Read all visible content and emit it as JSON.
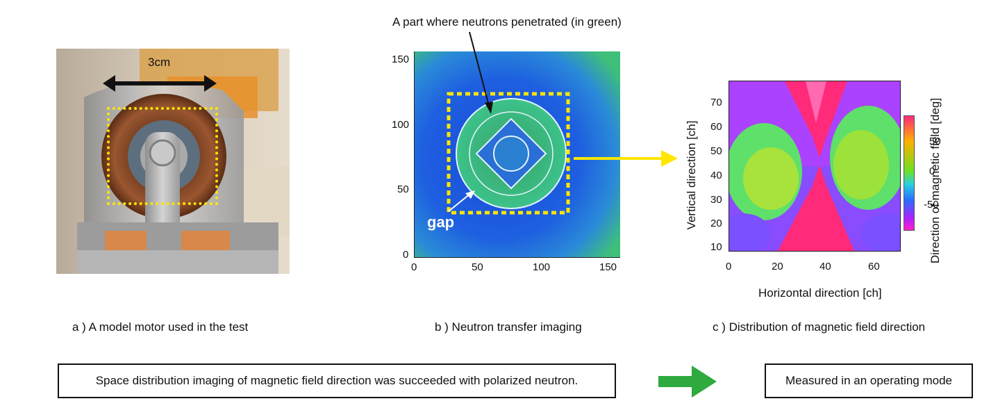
{
  "panel_a": {
    "dimension_label": "3cm",
    "caption": "a ) A model motor used in the test"
  },
  "panel_b": {
    "annotation": "A part where neutrons penetrated (in green)",
    "gap_label": "gap",
    "x_ticks": [
      "0",
      "50",
      "100",
      "150"
    ],
    "y_ticks": [
      "0",
      "50",
      "100",
      "150"
    ],
    "caption": "b ) Neutron transfer imaging"
  },
  "panel_c": {
    "xlabel": "Horizontal direction [ch]",
    "ylabel": "Vertical direction [ch]",
    "colorbar_label": "Direction of magnetic field [deg]",
    "x_ticks": [
      "0",
      "20",
      "40",
      "60"
    ],
    "y_ticks": [
      "10",
      "20",
      "30",
      "40",
      "50",
      "60",
      "70"
    ],
    "colorbar_ticks": [
      "50",
      "0",
      "-50"
    ],
    "caption": "c ) Distribution of magnetic field direction"
  },
  "summary_text": "Space distribution imaging of magnetic field direction was succeeded with polarized neutron.",
  "mode_text": "Measured in an operating mode",
  "colors": {
    "highlight_yellow": "#ffe600",
    "arrow_green": "#2eaa3f"
  },
  "chart_data": [
    {
      "type": "heatmap",
      "x_ticks": [
        0,
        50,
        100,
        150
      ],
      "y_ticks": [
        0,
        50,
        100,
        150
      ],
      "xlim": [
        0,
        155
      ],
      "ylim": [
        0,
        155
      ]
    },
    {
      "type": "heatmap",
      "xlabel": "Horizontal direction [ch]",
      "ylabel": "Vertical direction [ch]",
      "x_ticks": [
        0,
        20,
        40,
        60
      ],
      "y_ticks": [
        10,
        20,
        30,
        40,
        50,
        60,
        70
      ],
      "xlim": [
        0,
        70
      ],
      "ylim": [
        9,
        79
      ],
      "colorbar": {
        "label": "Direction of magnetic field [deg]",
        "ticks": [
          50,
          0,
          -50
        ],
        "range": [
          -90,
          90
        ]
      }
    }
  ]
}
